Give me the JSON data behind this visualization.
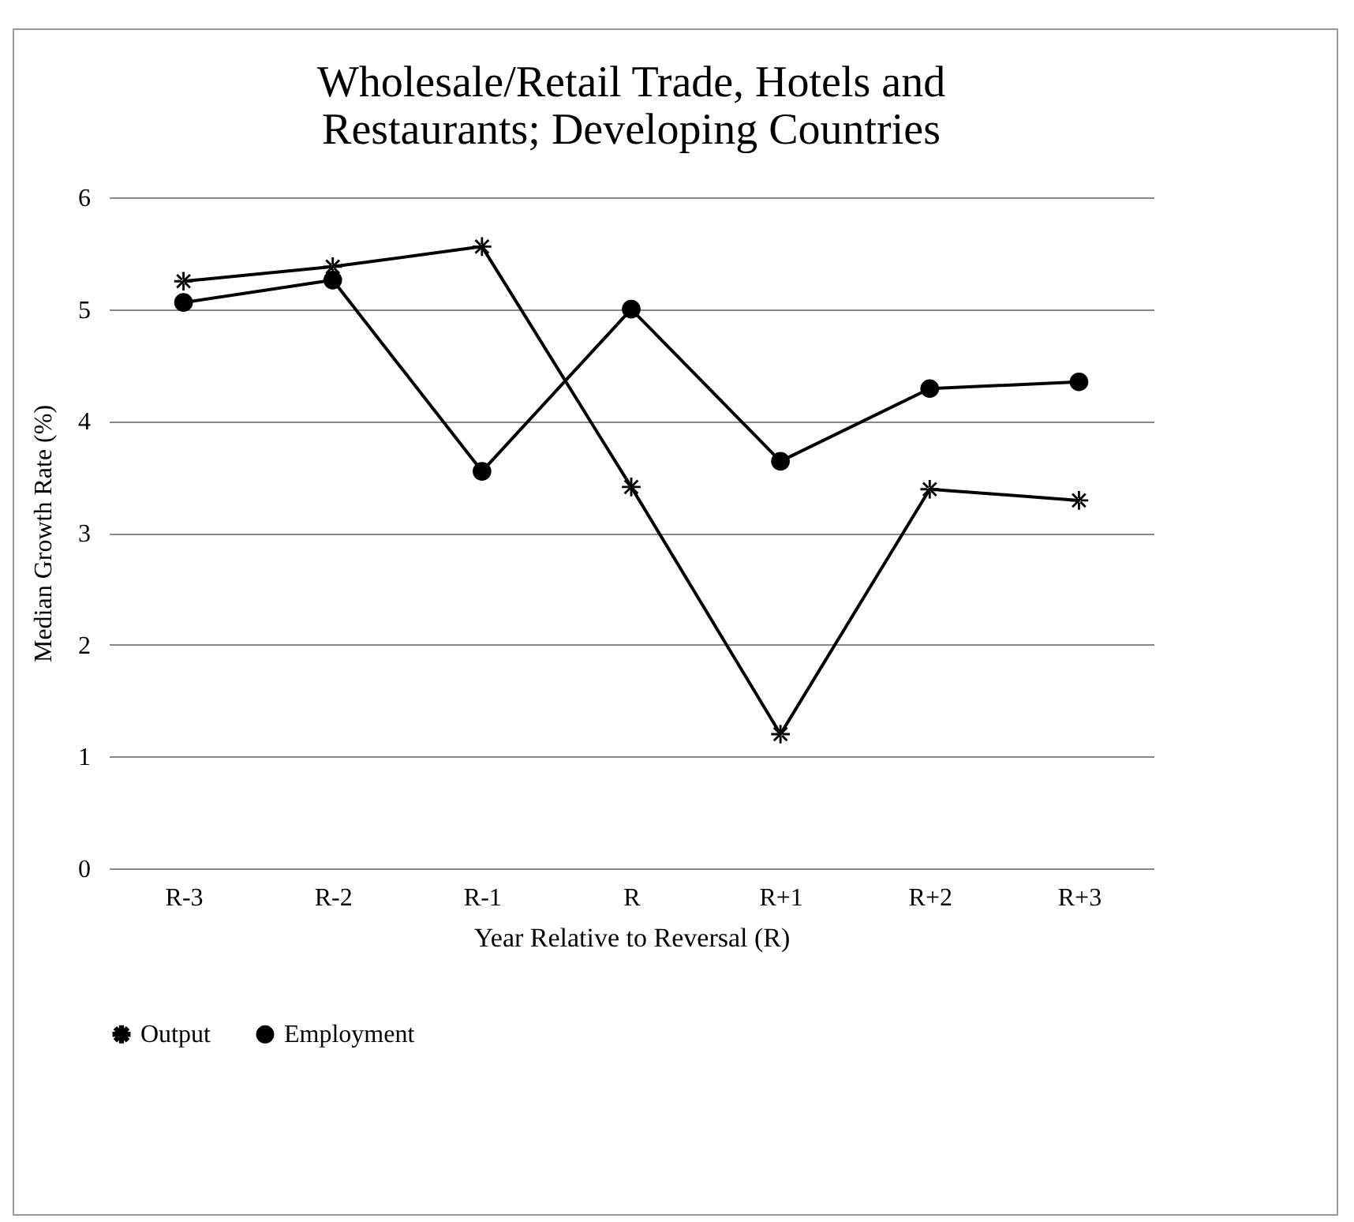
{
  "chart_data": {
    "type": "line",
    "title": "Wholesale/Retail Trade, Hotels and Restaurants; Developing Countries",
    "xlabel": "Year Relative to Reversal (R)",
    "ylabel": "Median Growth Rate (%)",
    "categories": [
      "R-3",
      "R-2",
      "R-1",
      "R",
      "R+1",
      "R+2",
      "R+3"
    ],
    "series": [
      {
        "name": "Output",
        "color": "#000000",
        "marker": "star",
        "values": [
          5.25,
          5.38,
          5.56,
          3.41,
          1.2,
          3.39,
          3.29
        ]
      },
      {
        "name": "Employment",
        "color": "#000000",
        "marker": "circle",
        "values": [
          5.06,
          5.26,
          3.55,
          5.0,
          3.64,
          4.29,
          4.35
        ]
      }
    ],
    "ylim": [
      0,
      6
    ],
    "yticks": [
      0,
      1,
      2,
      3,
      4,
      5,
      6
    ],
    "grid": "y",
    "legend": "bottom",
    "line_style": "solid"
  }
}
